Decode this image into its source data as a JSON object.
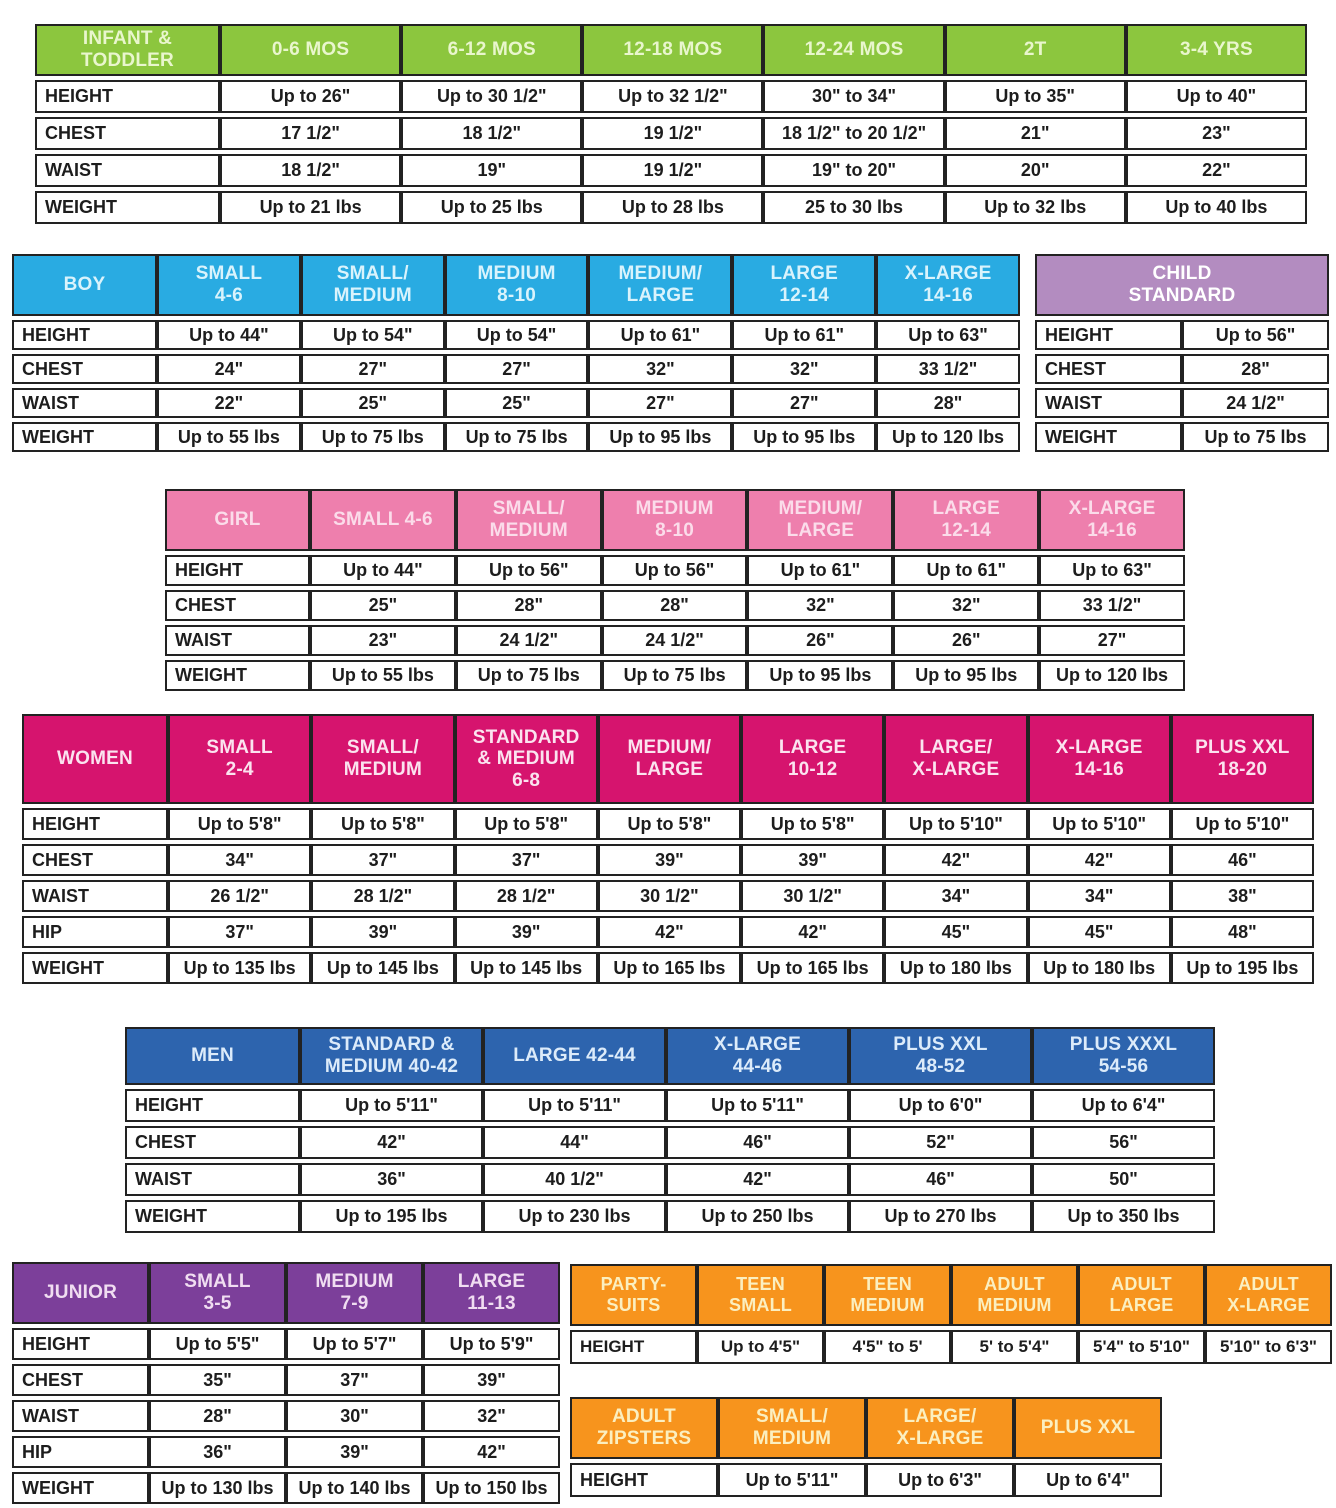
{
  "page": {
    "background": "#ffffff",
    "border_color": "#222222",
    "text_color": "#1d1d1d"
  },
  "tables": {
    "infant": {
      "title": "INFANT & TODDLER",
      "accent": {
        "header_bg": "#8CC63E",
        "header_text": "#E9F6CD"
      },
      "headers": [
        "INFANT &\nTODDLER",
        "0-6 MOS",
        "6-12 MOS",
        "12-18 MOS",
        "12-24 MOS",
        "2T",
        "3-4 YRS"
      ],
      "rows": [
        {
          "label": "HEIGHT",
          "values": [
            "Up to 26\"",
            "Up to 30 1/2\"",
            "Up to 32 1/2\"",
            "30\" to 34\"",
            "Up to 35\"",
            "Up to 40\""
          ]
        },
        {
          "label": "CHEST",
          "values": [
            "17 1/2\"",
            "18 1/2\"",
            "19 1/2\"",
            "18 1/2\" to 20 1/2\"",
            "21\"",
            "23\""
          ]
        },
        {
          "label": "WAIST",
          "values": [
            "18 1/2\"",
            "19\"",
            "19 1/2\"",
            "19\" to 20\"",
            "20\"",
            "22\""
          ]
        },
        {
          "label": "WEIGHT",
          "values": [
            "Up to 21 lbs",
            "Up to 25 lbs",
            "Up to 28 lbs",
            "25 to 30 lbs",
            "Up to 32 lbs",
            "Up to 40 lbs"
          ]
        }
      ]
    },
    "boy": {
      "title": "BOY",
      "accent": {
        "header_bg": "#29ABE2",
        "header_text": "#D9F3FC"
      },
      "headers": [
        "BOY",
        "SMALL\n4-6",
        "SMALL/\nMEDIUM",
        "MEDIUM\n8-10",
        "MEDIUM/\nLARGE",
        "LARGE\n12-14",
        "X-LARGE\n14-16"
      ],
      "rows": [
        {
          "label": "HEIGHT",
          "values": [
            "Up to 44\"",
            "Up to 54\"",
            "Up to 54\"",
            "Up to 61\"",
            "Up to 61\"",
            "Up to 63\""
          ]
        },
        {
          "label": "CHEST",
          "values": [
            "24\"",
            "27\"",
            "27\"",
            "32\"",
            "32\"",
            "33 1/2\""
          ]
        },
        {
          "label": "WAIST",
          "values": [
            "22\"",
            "25\"",
            "25\"",
            "27\"",
            "27\"",
            "28\""
          ]
        },
        {
          "label": "WEIGHT",
          "values": [
            "Up to 55 lbs",
            "Up to 75 lbs",
            "Up to 75 lbs",
            "Up to 95 lbs",
            "Up to 95 lbs",
            "Up to 120 lbs"
          ]
        }
      ]
    },
    "child": {
      "title": "CHILD STANDARD",
      "accent": {
        "header_bg": "#B38CC0",
        "header_text": "#FFFFFF"
      },
      "headers": [
        {
          "text": "CHILD\nSTANDARD",
          "span": 2
        }
      ],
      "rows": [
        {
          "label": "HEIGHT",
          "values": [
            "Up to 56\""
          ]
        },
        {
          "label": "CHEST",
          "values": [
            "28\""
          ]
        },
        {
          "label": "WAIST",
          "values": [
            "24 1/2\""
          ]
        },
        {
          "label": "WEIGHT",
          "values": [
            "Up to 75 lbs"
          ]
        }
      ]
    },
    "girl": {
      "title": "GIRL",
      "accent": {
        "header_bg": "#EE7FAD",
        "header_text": "#FBDCEA"
      },
      "headers": [
        "GIRL",
        "SMALL 4-6",
        "SMALL/\nMEDIUM",
        "MEDIUM\n8-10",
        "MEDIUM/\nLARGE",
        "LARGE\n12-14",
        "X-LARGE\n14-16"
      ],
      "rows": [
        {
          "label": "HEIGHT",
          "values": [
            "Up to 44\"",
            "Up to 56\"",
            "Up to 56\"",
            "Up to 61\"",
            "Up to 61\"",
            "Up to 63\""
          ]
        },
        {
          "label": "CHEST",
          "values": [
            "25\"",
            "28\"",
            "28\"",
            "32\"",
            "32\"",
            "33 1/2\""
          ]
        },
        {
          "label": "WAIST",
          "values": [
            "23\"",
            "24 1/2\"",
            "24 1/2\"",
            "26\"",
            "26\"",
            "27\""
          ]
        },
        {
          "label": "WEIGHT",
          "values": [
            "Up to 55 lbs",
            "Up to 75 lbs",
            "Up to 75 lbs",
            "Up to 95 lbs",
            "Up to 95 lbs",
            "Up to 120 lbs"
          ]
        }
      ]
    },
    "women": {
      "title": "WOMEN",
      "accent": {
        "header_bg": "#D6146E",
        "header_text": "#FBE3EF"
      },
      "headers": [
        "WOMEN",
        "SMALL\n2-4",
        "SMALL/\nMEDIUM",
        "STANDARD\n& MEDIUM\n6-8",
        "MEDIUM/\nLARGE",
        "LARGE\n10-12",
        "LARGE/\nX-LARGE",
        "X-LARGE\n14-16",
        "PLUS XXL\n18-20"
      ],
      "rows": [
        {
          "label": "HEIGHT",
          "values": [
            "Up to 5'8\"",
            "Up to 5'8\"",
            "Up to 5'8\"",
            "Up to 5'8\"",
            "Up to 5'8\"",
            "Up to 5'10\"",
            "Up to 5'10\"",
            "Up to 5'10\""
          ]
        },
        {
          "label": "CHEST",
          "values": [
            "34\"",
            "37\"",
            "37\"",
            "39\"",
            "39\"",
            "42\"",
            "42\"",
            "46\""
          ]
        },
        {
          "label": "WAIST",
          "values": [
            "26 1/2\"",
            "28 1/2\"",
            "28 1/2\"",
            "30 1/2\"",
            "30 1/2\"",
            "34\"",
            "34\"",
            "38\""
          ]
        },
        {
          "label": "HIP",
          "values": [
            "37\"",
            "39\"",
            "39\"",
            "42\"",
            "42\"",
            "45\"",
            "45\"",
            "48\""
          ]
        },
        {
          "label": "WEIGHT",
          "values": [
            "Up to 135 lbs",
            "Up to 145 lbs",
            "Up to 145 lbs",
            "Up to 165 lbs",
            "Up to 165 lbs",
            "Up to 180 lbs",
            "Up to 180 lbs",
            "Up to 195 lbs"
          ]
        }
      ]
    },
    "men": {
      "title": "MEN",
      "accent": {
        "header_bg": "#2D64AE",
        "header_text": "#DCEBFA"
      },
      "headers": [
        "MEN",
        "STANDARD &\nMEDIUM 40-42",
        "LARGE 42-44",
        "X-LARGE\n44-46",
        "PLUS XXL\n48-52",
        "PLUS XXXL\n54-56"
      ],
      "rows": [
        {
          "label": "HEIGHT",
          "values": [
            "Up to 5'11\"",
            "Up to 5'11\"",
            "Up to 5'11\"",
            "Up to 6'0\"",
            "Up to 6'4\""
          ]
        },
        {
          "label": "CHEST",
          "values": [
            "42\"",
            "44\"",
            "46\"",
            "52\"",
            "56\""
          ]
        },
        {
          "label": "WAIST",
          "values": [
            "36\"",
            "40 1/2\"",
            "42\"",
            "46\"",
            "50\""
          ]
        },
        {
          "label": "WEIGHT",
          "values": [
            "Up to 195 lbs",
            "Up to 230 lbs",
            "Up to 250 lbs",
            "Up to 270 lbs",
            "Up to 350 lbs"
          ]
        }
      ]
    },
    "junior": {
      "title": "JUNIOR",
      "accent": {
        "header_bg": "#7C3F9A",
        "header_text": "#F0DDF1"
      },
      "headers": [
        "JUNIOR",
        "SMALL\n3-5",
        "MEDIUM\n7-9",
        "LARGE\n11-13"
      ],
      "rows": [
        {
          "label": "HEIGHT",
          "values": [
            "Up to 5'5\"",
            "Up to 5'7\"",
            "Up to 5'9\""
          ]
        },
        {
          "label": "CHEST",
          "values": [
            "35\"",
            "37\"",
            "39\""
          ]
        },
        {
          "label": "WAIST",
          "values": [
            "28\"",
            "30\"",
            "32\""
          ]
        },
        {
          "label": "HIP",
          "values": [
            "36\"",
            "39\"",
            "42\""
          ]
        },
        {
          "label": "WEIGHT",
          "values": [
            "Up to 130 lbs",
            "Up to 140 lbs",
            "Up to 150 lbs"
          ]
        }
      ]
    },
    "party": {
      "title": "PARTY-SUITS",
      "accent": {
        "header_bg": "#F7941D",
        "header_text": "#FBEFC0"
      },
      "headers": [
        "PARTY-\nSUITS",
        "TEEN\nSMALL",
        "TEEN\nMEDIUM",
        "ADULT\nMEDIUM",
        "ADULT\nLARGE",
        "ADULT\nX-LARGE"
      ],
      "rows": [
        {
          "label": "HEIGHT",
          "values": [
            "Up to 4'5\"",
            "4'5\" to 5'",
            "5' to 5'4\"",
            "5'4\" to 5'10\"",
            "5'10\" to 6'3\""
          ]
        }
      ]
    },
    "zip": {
      "title": "ADULT ZIPSTERS",
      "accent": {
        "header_bg": "#F7941D",
        "header_text": "#FBEFC0"
      },
      "headers": [
        "ADULT\nZIPSTERS",
        "SMALL/\nMEDIUM",
        "LARGE/\nX-LARGE",
        "PLUS XXL"
      ],
      "rows": [
        {
          "label": "HEIGHT",
          "values": [
            "Up to 5'11\"",
            "Up to 6'3\"",
            "Up to 6'4\""
          ]
        }
      ]
    }
  }
}
